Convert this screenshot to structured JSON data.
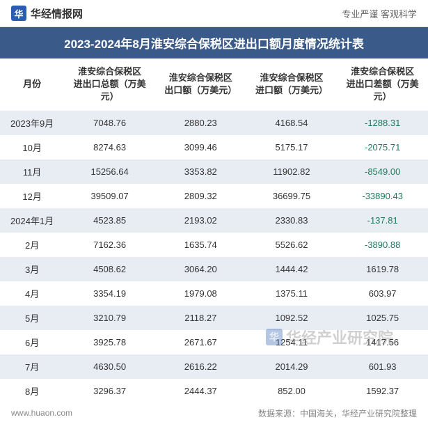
{
  "header": {
    "site_name": "华经情报网",
    "logo_char": "华",
    "slogan": "专业严谨  客观科学"
  },
  "title": "2023-2024年8月淮安综合保税区进出口额月度情况统计表",
  "columns": [
    {
      "main": "月份",
      "sub": ""
    },
    {
      "main": "淮安综合保税区",
      "sub": "进出口总额（万美元）"
    },
    {
      "main": "淮安综合保税区",
      "sub": "出口额（万美元）"
    },
    {
      "main": "淮安综合保税区",
      "sub": "进口额（万美元）"
    },
    {
      "main": "淮安综合保税区",
      "sub": "进出口差额（万美元）"
    }
  ],
  "rows": [
    {
      "month": "2023年9月",
      "total": "7048.76",
      "export": "2880.23",
      "import": "4168.54",
      "diff": "-1288.31",
      "diff_negative": true
    },
    {
      "month": "10月",
      "total": "8274.63",
      "export": "3099.46",
      "import": "5175.17",
      "diff": "-2075.71",
      "diff_negative": true
    },
    {
      "month": "11月",
      "total": "15256.64",
      "export": "3353.82",
      "import": "11902.82",
      "diff": "-8549.00",
      "diff_negative": true
    },
    {
      "month": "12月",
      "total": "39509.07",
      "export": "2809.32",
      "import": "36699.75",
      "diff": "-33890.43",
      "diff_negative": true
    },
    {
      "month": "2024年1月",
      "total": "4523.85",
      "export": "2193.02",
      "import": "2330.83",
      "diff": "-137.81",
      "diff_negative": true
    },
    {
      "month": "2月",
      "total": "7162.36",
      "export": "1635.74",
      "import": "5526.62",
      "diff": "-3890.88",
      "diff_negative": true
    },
    {
      "month": "3月",
      "total": "4508.62",
      "export": "3064.20",
      "import": "1444.42",
      "diff": "1619.78",
      "diff_negative": false
    },
    {
      "month": "4月",
      "total": "3354.19",
      "export": "1979.08",
      "import": "1375.11",
      "diff": "603.97",
      "diff_negative": false
    },
    {
      "month": "5月",
      "total": "3210.79",
      "export": "2118.27",
      "import": "1092.52",
      "diff": "1025.75",
      "diff_negative": false
    },
    {
      "month": "6月",
      "total": "3925.78",
      "export": "2671.67",
      "import": "1254.11",
      "diff": "1417.56",
      "diff_negative": false
    },
    {
      "month": "7月",
      "total": "4630.50",
      "export": "2616.22",
      "import": "2014.29",
      "diff": "601.93",
      "diff_negative": false
    },
    {
      "month": "8月",
      "total": "3296.37",
      "export": "2444.37",
      "import": "852.00",
      "diff": "1592.37",
      "diff_negative": false
    }
  ],
  "footer": {
    "site_url": "www.huaon.com",
    "source": "数据来源：中国海关，华经产业研究院整理"
  },
  "watermark": {
    "text": "华经产业研究院",
    "icon_char": "华"
  },
  "styling": {
    "title_bg": "#3a5a8a",
    "title_color": "#ffffff",
    "row_even_bg": "#e8ecf3",
    "row_odd_bg": "#ffffff",
    "negative_color": "#1e7a5a",
    "text_color": "#333333",
    "logo_bg": "#2b5cb0",
    "font_size_title": 17,
    "font_size_header": 13,
    "font_size_cell": 13,
    "font_size_footer": 12
  }
}
